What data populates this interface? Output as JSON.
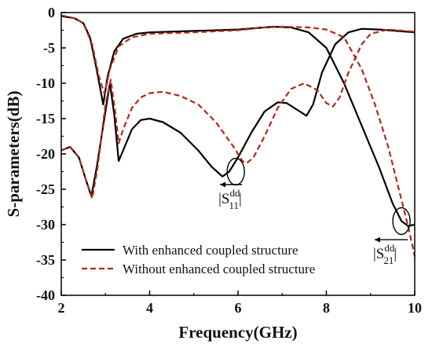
{
  "chart_data": {
    "type": "line",
    "xlabel": "Frequency(GHz)",
    "ylabel": "S-parameters(dB)",
    "xlim": [
      2,
      10
    ],
    "ylim": [
      -40,
      0
    ],
    "xticks": [
      2,
      4,
      6,
      8,
      10
    ],
    "yticks": [
      0,
      -5,
      -10,
      -15,
      -20,
      -25,
      -30,
      -35,
      -40
    ],
    "grid": false,
    "legend_position": "bottom-left",
    "series": [
      {
        "name": "With enhanced coupled structure",
        "parameter": "S11dd",
        "style": "solid",
        "color": "#000000",
        "points": [
          [
            2.0,
            -19.5
          ],
          [
            2.2,
            -19.0
          ],
          [
            2.4,
            -20.5
          ],
          [
            2.55,
            -23.5
          ],
          [
            2.68,
            -26.0
          ],
          [
            2.8,
            -22.0
          ],
          [
            2.95,
            -16.0
          ],
          [
            3.1,
            -10.0
          ],
          [
            3.2,
            -14.5
          ],
          [
            3.3,
            -21.0
          ],
          [
            3.4,
            -19.5
          ],
          [
            3.6,
            -16.5
          ],
          [
            3.8,
            -15.2
          ],
          [
            4.0,
            -15.0
          ],
          [
            4.3,
            -15.5
          ],
          [
            4.7,
            -17.0
          ],
          [
            5.1,
            -19.5
          ],
          [
            5.4,
            -21.8
          ],
          [
            5.65,
            -23.2
          ],
          [
            5.8,
            -22.5
          ],
          [
            6.0,
            -20.5
          ],
          [
            6.3,
            -17.0
          ],
          [
            6.6,
            -14.0
          ],
          [
            6.9,
            -12.7
          ],
          [
            7.1,
            -12.8
          ],
          [
            7.4,
            -14.0
          ],
          [
            7.55,
            -14.6
          ],
          [
            7.7,
            -13.0
          ],
          [
            7.9,
            -8.5
          ],
          [
            8.2,
            -4.5
          ],
          [
            8.5,
            -2.8
          ],
          [
            8.8,
            -2.3
          ],
          [
            9.2,
            -2.4
          ],
          [
            9.6,
            -2.6
          ],
          [
            10.0,
            -2.8
          ]
        ]
      },
      {
        "name": "With enhanced coupled structure",
        "parameter": "S21dd",
        "style": "solid",
        "color": "#000000",
        "points": [
          [
            2.0,
            -0.5
          ],
          [
            2.3,
            -0.8
          ],
          [
            2.5,
            -1.5
          ],
          [
            2.65,
            -3.5
          ],
          [
            2.8,
            -8.0
          ],
          [
            2.95,
            -13.0
          ],
          [
            3.05,
            -9.0
          ],
          [
            3.2,
            -5.5
          ],
          [
            3.4,
            -3.7
          ],
          [
            3.7,
            -3.0
          ],
          [
            4.0,
            -2.8
          ],
          [
            5.0,
            -2.6
          ],
          [
            6.0,
            -2.4
          ],
          [
            6.8,
            -2.0
          ],
          [
            7.2,
            -2.1
          ],
          [
            7.6,
            -2.8
          ],
          [
            8.0,
            -5.0
          ],
          [
            8.4,
            -10.0
          ],
          [
            8.8,
            -16.0
          ],
          [
            9.2,
            -22.0
          ],
          [
            9.5,
            -27.0
          ],
          [
            9.7,
            -29.5
          ],
          [
            9.85,
            -30.2
          ],
          [
            10.0,
            -30.0
          ]
        ]
      },
      {
        "name": "Without enhanced coupled structure",
        "parameter": "S11dd",
        "style": "dashed",
        "color": "#b0281a",
        "points": [
          [
            2.0,
            -19.5
          ],
          [
            2.2,
            -19.0
          ],
          [
            2.4,
            -20.5
          ],
          [
            2.55,
            -23.5
          ],
          [
            2.7,
            -26.3
          ],
          [
            2.82,
            -22.0
          ],
          [
            3.0,
            -13.0
          ],
          [
            3.12,
            -9.5
          ],
          [
            3.22,
            -14.0
          ],
          [
            3.3,
            -18.5
          ],
          [
            3.4,
            -16.5
          ],
          [
            3.6,
            -13.5
          ],
          [
            3.8,
            -12.0
          ],
          [
            4.0,
            -11.4
          ],
          [
            4.3,
            -11.2
          ],
          [
            4.7,
            -11.8
          ],
          [
            5.1,
            -13.0
          ],
          [
            5.5,
            -15.5
          ],
          [
            5.9,
            -19.0
          ],
          [
            6.1,
            -21.0
          ],
          [
            6.2,
            -21.3
          ],
          [
            6.35,
            -20.5
          ],
          [
            6.6,
            -17.5
          ],
          [
            6.9,
            -13.5
          ],
          [
            7.2,
            -10.8
          ],
          [
            7.5,
            -10.0
          ],
          [
            7.8,
            -11.0
          ],
          [
            8.0,
            -12.8
          ],
          [
            8.15,
            -13.3
          ],
          [
            8.3,
            -12.0
          ],
          [
            8.5,
            -8.5
          ],
          [
            8.8,
            -4.5
          ],
          [
            9.0,
            -3.0
          ],
          [
            9.4,
            -2.4
          ],
          [
            10.0,
            -2.7
          ]
        ]
      },
      {
        "name": "Without enhanced coupled structure",
        "parameter": "S21dd",
        "style": "dashed",
        "color": "#b0281a",
        "points": [
          [
            2.0,
            -0.4
          ],
          [
            2.3,
            -0.8
          ],
          [
            2.5,
            -1.5
          ],
          [
            2.7,
            -4.5
          ],
          [
            2.85,
            -9.0
          ],
          [
            2.98,
            -11.5
          ],
          [
            3.1,
            -8.0
          ],
          [
            3.3,
            -4.8
          ],
          [
            3.6,
            -3.5
          ],
          [
            4.0,
            -3.0
          ],
          [
            5.0,
            -2.8
          ],
          [
            6.0,
            -2.5
          ],
          [
            6.6,
            -2.1
          ],
          [
            7.0,
            -2.0
          ],
          [
            7.6,
            -2.1
          ],
          [
            8.0,
            -2.4
          ],
          [
            8.4,
            -3.5
          ],
          [
            8.8,
            -8.0
          ],
          [
            9.1,
            -13.0
          ],
          [
            9.4,
            -19.0
          ],
          [
            9.6,
            -24.0
          ],
          [
            9.8,
            -29.0
          ],
          [
            9.95,
            -33.0
          ],
          [
            10.0,
            -34.5
          ]
        ]
      }
    ],
    "legend": [
      {
        "label": "With enhanced coupled structure",
        "style": "solid",
        "color": "#000000"
      },
      {
        "label": "Without enhanced coupled structure",
        "style": "dashed",
        "color": "#b0281a"
      }
    ],
    "annotations": [
      {
        "main": "|S",
        "sup": "dd",
        "sub": "11",
        "close": "|",
        "target": [
          5.95,
          -22.5
        ],
        "label_at": [
          5.7,
          -27.0
        ]
      },
      {
        "main": "|S",
        "sup": "dd",
        "sub": "21",
        "close": "|",
        "target": [
          9.7,
          -29.5
        ],
        "label_at": [
          9.2,
          -34.8
        ]
      }
    ]
  }
}
